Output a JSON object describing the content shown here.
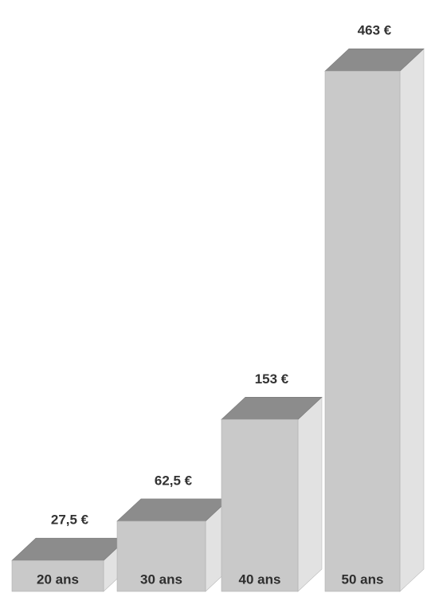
{
  "chart_data": {
    "type": "bar3d",
    "categories": [
      "20 ans",
      "30 ans",
      "40 ans",
      "50 ans"
    ],
    "values": [
      27.5,
      62.5,
      153,
      463
    ],
    "value_labels": [
      "27,5 €",
      "62,5 €",
      "153 €",
      "463 €"
    ],
    "color": "#c9c9c9"
  }
}
